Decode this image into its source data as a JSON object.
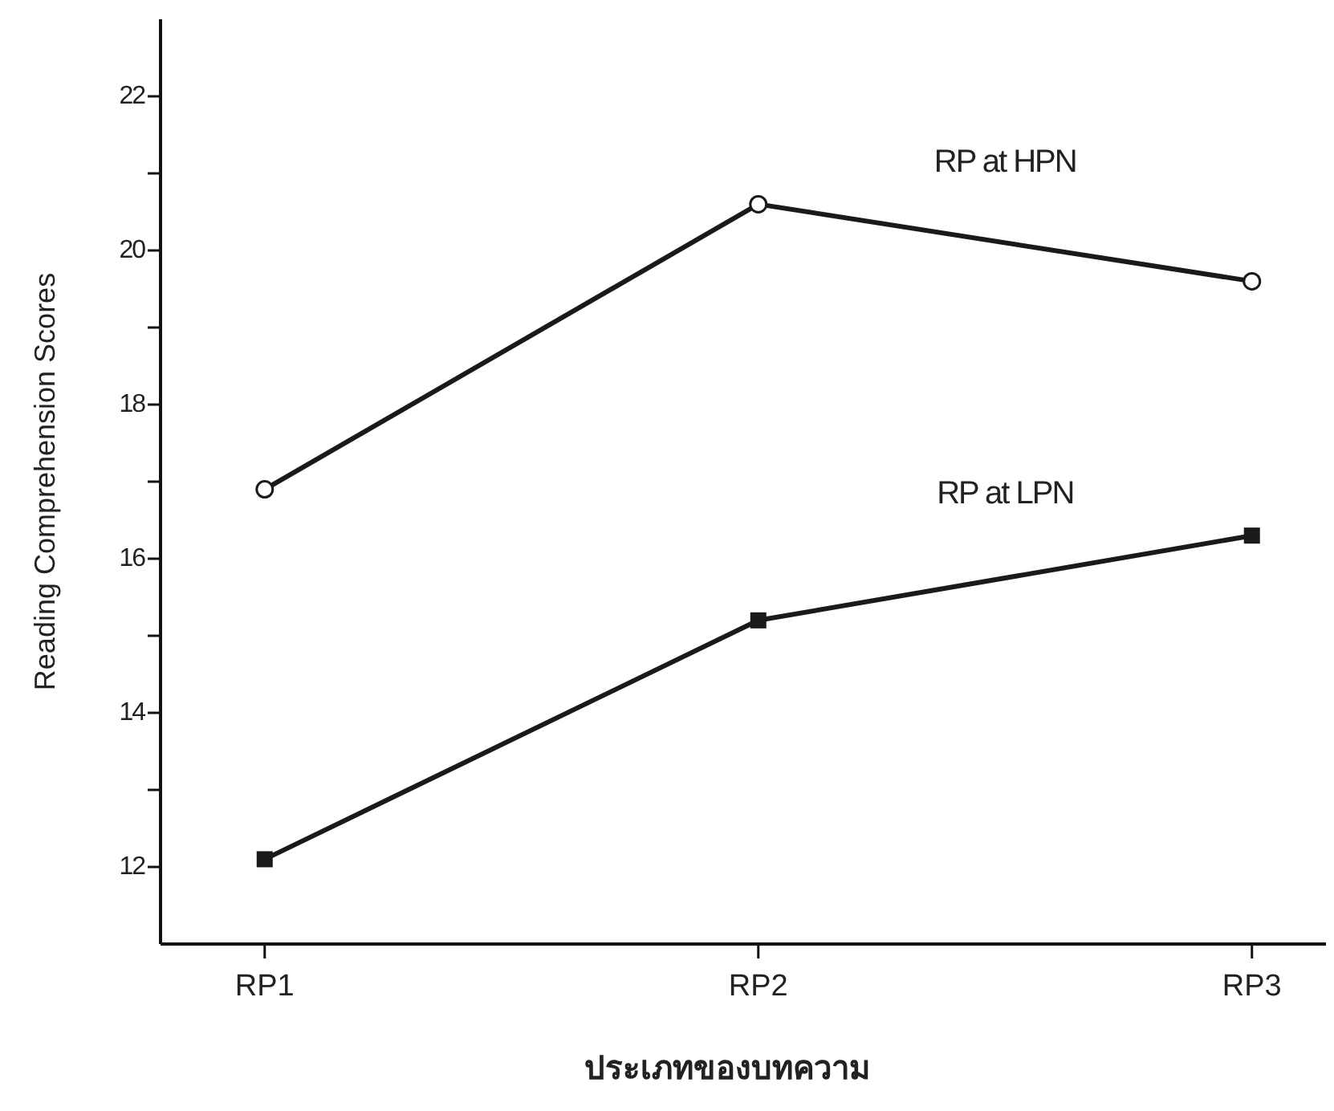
{
  "chart_data": {
    "type": "line",
    "xlabel": "ประเภทของบทความ",
    "ylabel": "Reading Comprehension Scores",
    "categories": [
      "RP1",
      "RP2",
      "RP3"
    ],
    "series": [
      {
        "name": "RP at HPN",
        "color": "#1a1a1a",
        "marker": "circle",
        "values": [
          16.9,
          20.6,
          19.6
        ]
      },
      {
        "name": "RP at LPN",
        "color": "#1a1a1a",
        "marker": "square",
        "values": [
          12.1,
          15.2,
          16.3
        ]
      }
    ],
    "ylim": [
      11,
      23
    ],
    "yticks": [
      {
        "value": 11,
        "label": null
      },
      12,
      {
        "value": 13,
        "label": null
      },
      14,
      {
        "value": 15,
        "label": null
      },
      16,
      {
        "value": 17,
        "label": null
      },
      18,
      {
        "value": 19,
        "label": null
      },
      20,
      {
        "value": 21,
        "label": null
      },
      22
    ],
    "line_style": "solid"
  }
}
